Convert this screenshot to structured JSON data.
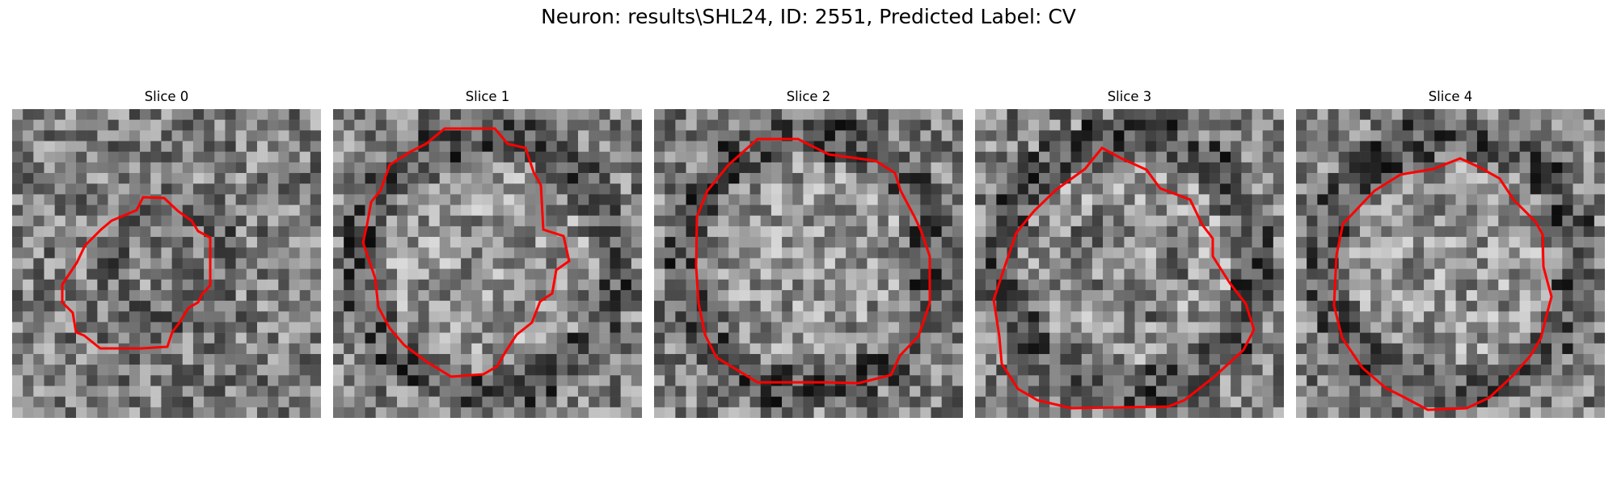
{
  "figure": {
    "title": "Neuron: results\\SHL24, ID: 2551, Predicted Label: CV"
  },
  "panels": [
    {
      "title": "Slice 0"
    },
    {
      "title": "Slice 1"
    },
    {
      "title": "Slice 2"
    },
    {
      "title": "Slice 3"
    },
    {
      "title": "Slice 4"
    }
  ],
  "colors": {
    "contour": "#ff0000",
    "colormap": "grayscale"
  }
}
